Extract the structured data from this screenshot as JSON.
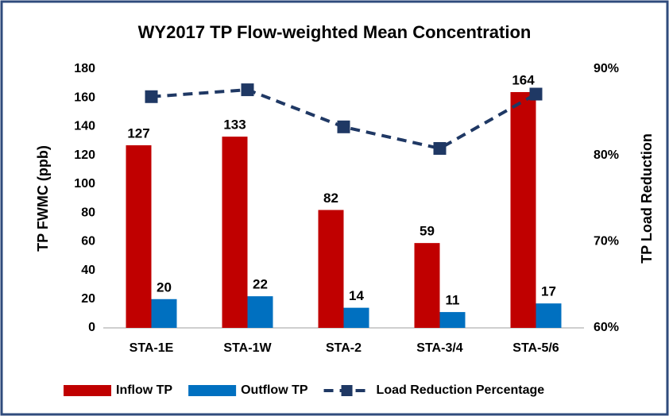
{
  "chart_data": {
    "type": "bar",
    "title": "WY2017 TP Flow-weighted  Mean Concentration",
    "y_label": "TP FWMC (ppb)",
    "y2_label": "TP Load Reduction",
    "categories": [
      "STA-1E",
      "STA-1W",
      "STA-2",
      "STA-3/4",
      "STA-5/6"
    ],
    "series": [
      {
        "name": "Inflow TP",
        "color": "#c00000",
        "values": [
          127,
          133,
          82,
          59,
          164
        ]
      },
      {
        "name": "Outflow TP",
        "color": "#0070c0",
        "values": [
          20,
          22,
          14,
          11,
          17
        ]
      },
      {
        "name": "Load Reduction Percentage",
        "color": "#1f3864",
        "type": "line",
        "axis": "y2",
        "dashed": true,
        "values": [
          86.8,
          87.6,
          83.3,
          80.8,
          87.1
        ]
      }
    ],
    "ylim": [
      0,
      180
    ],
    "yticks": [
      0,
      20,
      40,
      60,
      80,
      100,
      120,
      140,
      160,
      180
    ],
    "y2lim": [
      60,
      90
    ],
    "y2ticks": [
      {
        "value": 60,
        "label": "60%"
      },
      {
        "value": 70,
        "label": "70%"
      },
      {
        "value": 80,
        "label": "80%"
      },
      {
        "value": 90,
        "label": "90%"
      }
    ],
    "grid": false,
    "legend": "bottom"
  }
}
